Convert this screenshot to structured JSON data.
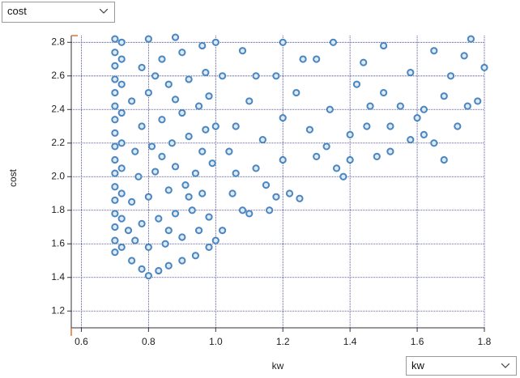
{
  "controls": {
    "y_select": "cost",
    "x_select": "kw"
  },
  "chart_data": {
    "type": "scatter",
    "x_label": "kw",
    "y_label": "cost",
    "color": "#4a86bf",
    "grid": true,
    "xlim": [
      0.57,
      1.8
    ],
    "ylim": [
      1.1,
      2.84
    ],
    "xticks": [
      0.6,
      0.8,
      {
        "value": 1,
        "label": "1.0"
      },
      1.2,
      1.4,
      1.6,
      1.8
    ],
    "yticks": [
      1.2,
      1.4,
      1.6,
      1.8,
      {
        "value": 2,
        "label": "2.0"
      },
      2.2,
      2.4,
      2.6,
      2.8
    ],
    "x": [
      0.7,
      0.7,
      0.7,
      0.7,
      0.7,
      0.7,
      0.7,
      0.7,
      0.7,
      0.7,
      0.7,
      0.7,
      0.7,
      0.7,
      0.7,
      0.7,
      0.7,
      0.72,
      0.72,
      0.72,
      0.72,
      0.72,
      0.72,
      0.72,
      0.72,
      0.72,
      0.75,
      0.78,
      0.8,
      0.83,
      0.86,
      0.9,
      0.94,
      0.98,
      1.0,
      0.76,
      0.8,
      0.85,
      0.9,
      0.95,
      0.78,
      0.83,
      0.88,
      0.93,
      0.98,
      0.75,
      0.8,
      0.86,
      0.91,
      0.96,
      0.77,
      0.82,
      0.88,
      0.94,
      0.99,
      0.76,
      0.81,
      0.87,
      0.92,
      0.97,
      0.78,
      0.84,
      0.9,
      0.95,
      1.0,
      0.75,
      0.8,
      0.86,
      0.92,
      0.97,
      0.78,
      0.84,
      0.9,
      0.96,
      0.8,
      0.88,
      1.0,
      0.74,
      0.86,
      0.92,
      0.84,
      0.96,
      0.88,
      0.82,
      0.98,
      1.02,
      1.05,
      1.08,
      1.1,
      1.12,
      1.15,
      1.18,
      1.22,
      1.25,
      1.04,
      1.06,
      1.1,
      1.14,
      1.18,
      1.2,
      1.24,
      1.28,
      1.3,
      1.34,
      1.36,
      1.38,
      1.4,
      1.42,
      1.45,
      1.48,
      1.5,
      1.52,
      1.55,
      1.58,
      1.6,
      1.62,
      1.65,
      1.68,
      1.7,
      1.72,
      1.75,
      1.78,
      1.8,
      1.08,
      1.2,
      1.35,
      1.5,
      1.65,
      1.76,
      1.12,
      1.26,
      1.44,
      1.58,
      1.3,
      1.2,
      1.16,
      1.33,
      1.46,
      1.62,
      1.74,
      1.02,
      1.06,
      1.4,
      1.52,
      1.68
    ],
    "values": [
      1.55,
      1.62,
      1.7,
      1.78,
      1.86,
      1.94,
      2.02,
      2.1,
      2.18,
      2.26,
      2.34,
      2.42,
      2.5,
      2.58,
      2.66,
      2.74,
      2.82,
      1.58,
      1.75,
      1.9,
      2.05,
      2.2,
      2.38,
      2.55,
      2.7,
      2.8,
      1.5,
      1.45,
      1.41,
      1.44,
      1.47,
      1.5,
      1.53,
      1.58,
      1.62,
      1.62,
      1.58,
      1.6,
      1.64,
      1.68,
      1.72,
      1.75,
      1.78,
      1.8,
      1.76,
      1.85,
      1.88,
      1.92,
      1.95,
      1.9,
      2.0,
      2.03,
      2.06,
      2.02,
      2.08,
      2.15,
      2.18,
      2.2,
      2.24,
      2.28,
      2.3,
      2.34,
      2.38,
      2.42,
      2.3,
      2.45,
      2.5,
      2.55,
      2.58,
      2.62,
      2.65,
      2.7,
      2.74,
      2.78,
      2.82,
      2.83,
      2.8,
      1.68,
      1.68,
      1.88,
      2.12,
      2.15,
      2.46,
      2.6,
      2.48,
      1.68,
      1.9,
      1.8,
      1.78,
      2.05,
      1.95,
      1.88,
      1.9,
      1.87,
      2.15,
      2.3,
      2.45,
      2.22,
      2.6,
      2.35,
      2.5,
      2.28,
      2.7,
      2.4,
      2.05,
      2.0,
      2.25,
      2.55,
      2.3,
      2.12,
      2.5,
      2.15,
      2.42,
      2.22,
      2.35,
      2.25,
      2.2,
      2.48,
      2.6,
      2.3,
      2.42,
      2.45,
      2.65,
      2.75,
      2.8,
      2.8,
      2.78,
      2.75,
      2.82,
      2.6,
      2.7,
      2.68,
      2.62,
      2.12,
      2.1,
      1.8,
      2.18,
      2.42,
      2.4,
      2.72,
      2.6,
      2.02,
      2.1,
      2.3,
      2.1
    ]
  }
}
